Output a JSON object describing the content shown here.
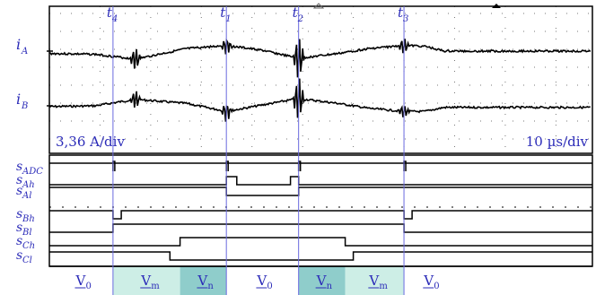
{
  "chart_data": {
    "type": "line",
    "time_axis": {
      "start_us": 0,
      "end_us": 53.6
    },
    "instants": [
      {
        "name": "t",
        "sub": "4",
        "t_us": 6.28
      },
      {
        "name": "t",
        "sub": "1",
        "t_us": 17.47
      },
      {
        "name": "t",
        "sub": "2",
        "t_us": 24.6
      },
      {
        "name": "t",
        "sub": "3",
        "t_us": 35.0
      }
    ],
    "scales": {
      "current": "3,36 A/div",
      "time": "10 µs/div"
    },
    "currents": [
      {
        "name": "i",
        "sub": "A",
        "points": [
          [
            0,
            -0.15
          ],
          [
            4.5,
            -0.2
          ],
          [
            8.5,
            -0.5
          ],
          [
            13.5,
            0.15
          ],
          [
            17.5,
            0.35
          ],
          [
            21,
            0.05
          ],
          [
            24.6,
            -0.45
          ],
          [
            28.5,
            -0.15
          ],
          [
            31.5,
            0.15
          ],
          [
            35,
            0.35
          ],
          [
            37,
            0.3
          ],
          [
            39,
            0.0
          ]
        ],
        "spikes": [
          {
            "t_us": 8.5,
            "amp": 0.8
          },
          {
            "t_us": 24.6,
            "amp": 1.6
          },
          {
            "t_us": 17.47,
            "amp": 0.6
          },
          {
            "t_us": 35.0,
            "amp": 0.6
          }
        ]
      },
      {
        "name": "i",
        "sub": "B",
        "points": [
          [
            0,
            -0.05
          ],
          [
            4.5,
            0.0
          ],
          [
            8.5,
            0.4
          ],
          [
            13.5,
            0.15
          ],
          [
            17.5,
            -0.35
          ],
          [
            21,
            0.05
          ],
          [
            24.6,
            0.45
          ],
          [
            28.5,
            0.15
          ],
          [
            31.5,
            -0.15
          ],
          [
            35,
            -0.35
          ],
          [
            37,
            -0.35
          ],
          [
            39,
            -0.1
          ]
        ],
        "spikes": [
          {
            "t_us": 8.5,
            "amp": 0.7
          },
          {
            "t_us": 24.6,
            "amp": 1.6
          },
          {
            "t_us": 17.47,
            "amp": 0.7
          },
          {
            "t_us": 35.0,
            "amp": 0.5
          }
        ]
      }
    ],
    "logic_signals": [
      {
        "name": "s",
        "sub": "ADC",
        "initial": 1,
        "toggles_us": []
      },
      {
        "name": "s",
        "sub": "Ah",
        "initial": 0,
        "toggles_us": [
          17.47,
          18.5,
          23.8,
          24.6
        ]
      },
      {
        "name": "s",
        "sub": "Al",
        "initial": 1,
        "toggles_us": [
          17.47,
          24.6
        ]
      },
      {
        "name": "s",
        "sub": "Bh",
        "initial": 1,
        "toggles_us": [
          6.28,
          7.1,
          35.0,
          35.8
        ]
      },
      {
        "name": "s",
        "sub": "Bl",
        "initial": 0,
        "toggles_us": [
          6.28,
          35.0
        ]
      },
      {
        "name": "s",
        "sub": "Ch",
        "initial": 0,
        "toggles_us": [
          12.9,
          29.2
        ]
      },
      {
        "name": "s",
        "sub": "Cl",
        "initial": 1,
        "toggles_us": [
          11.9,
          30.0
        ]
      }
    ],
    "adc_pulses_us": [
      6.28,
      17.47,
      24.6,
      35.0
    ],
    "vector_segments": [
      {
        "label": "V",
        "sub": "0",
        "from_us": 0,
        "to_us": 6.28,
        "fill": "#ffffff"
      },
      {
        "label": "V",
        "sub": "m",
        "from_us": 6.28,
        "to_us": 12.9,
        "fill": "#cdeee6"
      },
      {
        "label": "V",
        "sub": "n",
        "from_us": 12.9,
        "to_us": 17.47,
        "fill": "#8fcdcb"
      },
      {
        "label": "V",
        "sub": "0",
        "from_us": 17.47,
        "to_us": 24.6,
        "fill": "#ffffff"
      },
      {
        "label": "V",
        "sub": "n",
        "from_us": 24.6,
        "to_us": 29.2,
        "fill": "#8fcdcb"
      },
      {
        "label": "V",
        "sub": "m",
        "from_us": 29.2,
        "to_us": 35.0,
        "fill": "#cdeee6"
      },
      {
        "label": "V",
        "sub": "0",
        "from_us": 35.0,
        "to_us": 40.0,
        "fill": "#ffffff"
      }
    ],
    "colors": {
      "trace": "#000000",
      "marker": "#6a6adf",
      "label": "#2b2bb8"
    },
    "grid": true
  }
}
